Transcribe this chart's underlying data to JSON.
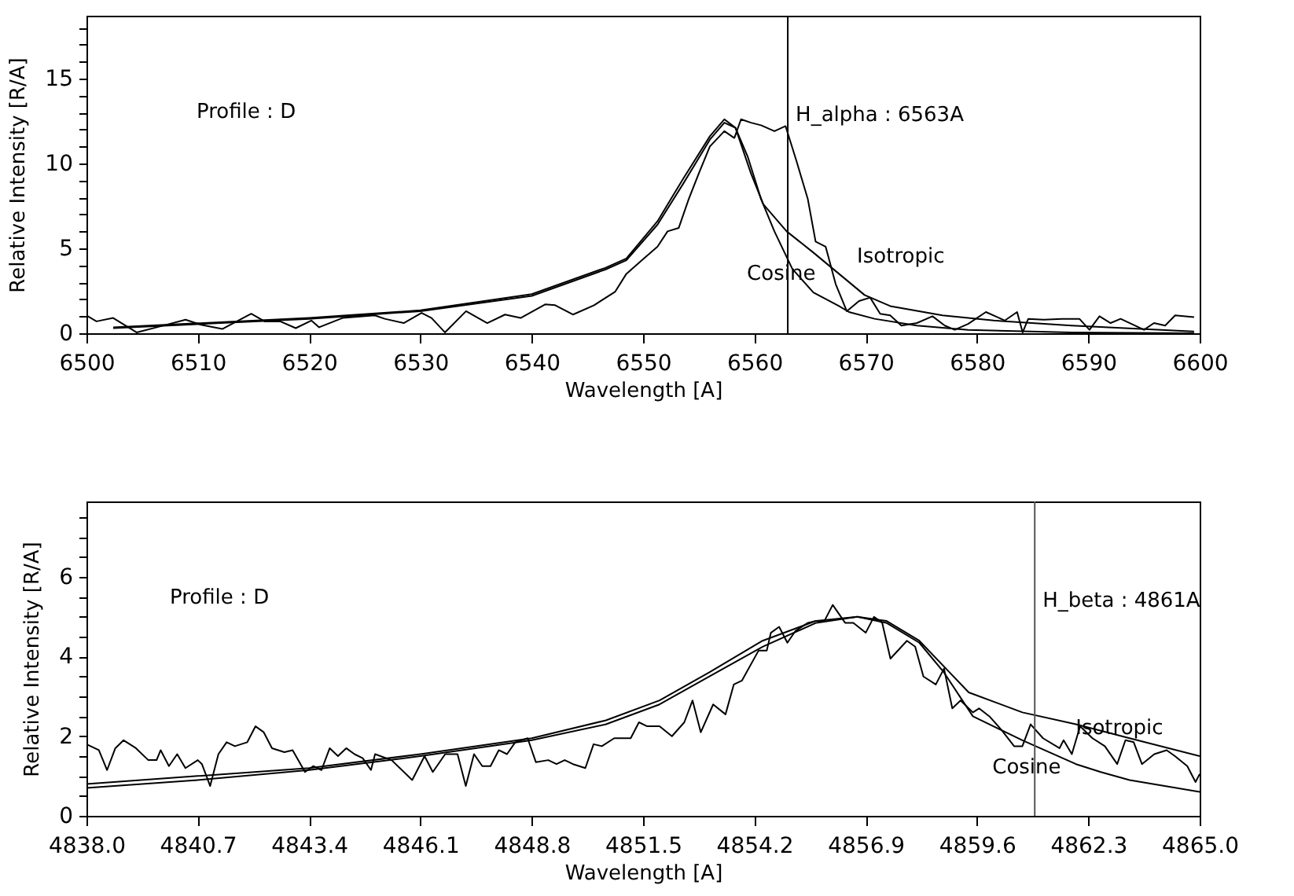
{
  "chart_data": [
    {
      "type": "line",
      "xlabel": "Wavelength    [A]",
      "ylabel": "Relative Intensity  [R/A]",
      "annotations": [
        "Profile : D"
      ],
      "xlim": [
        6500,
        6600
      ],
      "xticks": [
        6500,
        6510,
        6520,
        6530,
        6540,
        6550,
        6560,
        6570,
        6580,
        6590,
        6600
      ],
      "ylim": [
        0,
        18.7
      ],
      "yticks": [
        0,
        {
          "value": 1,
          "label": null
        },
        {
          "value": 2,
          "label": null
        },
        {
          "value": 3,
          "label": null
        },
        {
          "value": 4,
          "label": null
        },
        5,
        {
          "value": 6,
          "label": null
        },
        {
          "value": 7,
          "label": null
        },
        {
          "value": 8,
          "label": null
        },
        {
          "value": 9,
          "label": null
        },
        10,
        {
          "value": 11,
          "label": null
        },
        {
          "value": 12,
          "label": null
        },
        {
          "value": 13,
          "label": null
        },
        {
          "value": 14,
          "label": null
        },
        15,
        {
          "value": 16,
          "label": null
        },
        {
          "value": 17,
          "label": null
        },
        {
          "value": 18,
          "label": null
        }
      ],
      "ref_lines": [
        {
          "axis": "x",
          "value": 6563,
          "label": "H_alpha : 6563A",
          "color": "#000000"
        }
      ],
      "series": [
        {
          "color": "#000000",
          "x": [
            6500,
            6500.9,
            6502.4,
            6504.5,
            6506.6,
            6508.9,
            6510.3,
            6512.2,
            6514.8,
            6516,
            6517.4,
            6518.8,
            6520.2,
            6520.9,
            6523,
            6525.9,
            6526.8,
            6528.5,
            6530.1,
            6531,
            6532.2,
            6534.1,
            6536,
            6537.6,
            6539,
            6541.2,
            6542.1,
            6543.7,
            6545.6,
            6547.5,
            6548.5,
            6549.9,
            6551.3,
            6552.2,
            6553.2,
            6554.1,
            6555,
            6556,
            6557.3,
            6558.2,
            6558.8,
            6559.7,
            6560.6,
            6561.8,
            6562.8,
            6563.8,
            6564.8,
            6565.5,
            6566.4,
            6567.3,
            6568.3,
            6569.4,
            6570.4,
            6571.3,
            6572.2,
            6573.2,
            6574.6,
            6576,
            6577.1,
            6578,
            6579.2,
            6580.8,
            6582.5,
            6583.6,
            6584.1,
            6584.6,
            6586,
            6587.6,
            6589.2,
            6590.1,
            6591,
            6592,
            6592.9,
            6595,
            6595.9,
            6596.9,
            6597.8,
            6599.5
          ],
          "values": [
            1.05,
            0.7,
            0.9,
            0.05,
            0.4,
            0.8,
            0.5,
            0.25,
            1.15,
            0.7,
            0.7,
            0.3,
            0.75,
            0.35,
            0.9,
            1.05,
            0.85,
            0.6,
            1.2,
            0.9,
            0.05,
            1.3,
            0.6,
            1.1,
            0.9,
            1.7,
            1.65,
            1.1,
            1.65,
            2.45,
            3.5,
            4.3,
            5.1,
            6.0,
            6.2,
            7.9,
            9.4,
            11.0,
            11.9,
            11.5,
            12.6,
            12.4,
            12.25,
            11.9,
            12.2,
            10.1,
            7.9,
            5.4,
            5.1,
            2.9,
            1.3,
            1.9,
            2.1,
            1.15,
            1.05,
            0.45,
            0.6,
            1.0,
            0.45,
            0.2,
            0.55,
            1.25,
            0.75,
            1.25,
            0.05,
            0.85,
            0.8,
            0.85,
            0.85,
            0.2,
            1.0,
            0.6,
            0.85,
            0.2,
            0.6,
            0.45,
            1.05,
            0.95
          ]
        },
        {
          "name": "Isotropic",
          "color": "#000000",
          "x": [
            6502.4,
            6520,
            6530,
            6540,
            6546.6,
            6548.5,
            6551.3,
            6553.6,
            6556,
            6557.3,
            6558.3,
            6559.7,
            6560.8,
            6562.9,
            6565.3,
            6567.6,
            6569.9,
            6572.2,
            6576.9,
            6581.5,
            6588.5,
            6599.5
          ],
          "values": [
            0.35,
            0.9,
            1.35,
            2.3,
            3.85,
            4.4,
            6.6,
            9.1,
            11.6,
            12.6,
            12.1,
            9.4,
            7.6,
            6.0,
            4.75,
            3.5,
            2.25,
            1.6,
            1.05,
            0.75,
            0.45,
            0.1
          ]
        },
        {
          "name": "Cosine",
          "color": "#000000",
          "x": [
            6502.4,
            6520,
            6530,
            6540,
            6546.6,
            6548.5,
            6551.3,
            6553.6,
            6556,
            6557.3,
            6558.3,
            6559.4,
            6560.6,
            6561.8,
            6563.4,
            6565.3,
            6567.6,
            6568.5,
            6570.8,
            6574.6,
            6579.2,
            6588.5,
            6599.5
          ],
          "values": [
            0.3,
            0.85,
            1.3,
            2.2,
            3.75,
            4.3,
            6.4,
            8.8,
            11.4,
            12.4,
            12.1,
            10.4,
            7.9,
            6.0,
            3.8,
            2.4,
            1.6,
            1.25,
            0.85,
            0.45,
            0.2,
            0.05,
            0.0
          ]
        }
      ]
    },
    {
      "type": "line",
      "xlabel": "Wavelength    [A]",
      "ylabel": "Relative Intensity  [R/A]",
      "annotations": [
        "Profile : D"
      ],
      "xlim": [
        4838,
        4865
      ],
      "xticks": [
        {
          "value": 4838,
          "label": "4838.0"
        },
        4840.7,
        4843.4,
        4846.1,
        4848.8,
        4851.5,
        4854.2,
        4856.9,
        4859.6,
        4862.3,
        {
          "value": 4865,
          "label": "4865.0"
        }
      ],
      "ylim": [
        0,
        7.9
      ],
      "yticks": [
        0,
        {
          "value": 0.5,
          "label": null
        },
        {
          "value": 1,
          "label": null
        },
        {
          "value": 1.5,
          "label": null
        },
        2,
        {
          "value": 2.5,
          "label": null
        },
        {
          "value": 3,
          "label": null
        },
        {
          "value": 3.5,
          "label": null
        },
        4,
        {
          "value": 4.5,
          "label": null
        },
        {
          "value": 5,
          "label": null
        },
        {
          "value": 5.5,
          "label": null
        },
        6,
        {
          "value": 6.5,
          "label": null
        },
        {
          "value": 7,
          "label": null
        },
        {
          "value": 7.5,
          "label": null
        }
      ],
      "ref_lines": [
        {
          "axis": "x",
          "value": 4861,
          "label": "H_beta : 4861A",
          "color": "#555555"
        }
      ],
      "series": [
        {
          "color": "#000000",
          "x": [
            4838.0,
            4838.3,
            4838.5,
            4838.7,
            4838.9,
            4839.2,
            4839.5,
            4839.7,
            4839.8,
            4840.0,
            4840.2,
            4840.4,
            4840.7,
            4840.8,
            4841.0,
            4841.2,
            4841.4,
            4841.6,
            4841.9,
            4842.1,
            4842.3,
            4842.5,
            4842.8,
            4843.0,
            4843.3,
            4843.5,
            4843.7,
            4843.9,
            4844.1,
            4844.3,
            4844.5,
            4844.7,
            4844.9,
            4845.0,
            4845.4,
            4845.9,
            4846.2,
            4846.4,
            4846.7,
            4847.0,
            4847.2,
            4847.4,
            4847.6,
            4847.8,
            4848.0,
            4848.2,
            4848.4,
            4848.7,
            4848.9,
            4849.2,
            4849.4,
            4849.6,
            4849.8,
            4850.1,
            4850.3,
            4850.5,
            4850.8,
            4851.2,
            4851.4,
            4851.6,
            4851.9,
            4852.2,
            4852.5,
            4852.7,
            4852.9,
            4853.2,
            4853.5,
            4853.7,
            4853.9,
            4854.3,
            4854.5,
            4854.6,
            4854.8,
            4855.0,
            4855.2,
            4855.5,
            4855.7,
            4855.9,
            4856.1,
            4856.4,
            4856.6,
            4856.9,
            4857.1,
            4857.3,
            4857.5,
            4857.9,
            4858.1,
            4858.3,
            4858.6,
            4858.8,
            4859.0,
            4859.2,
            4859.5,
            4859.65,
            4859.9,
            4860.2,
            4860.5,
            4860.7,
            4860.9,
            4861.2,
            4861.6,
            4861.7,
            4861.9,
            4862.1,
            4862.4,
            4862.7,
            4863.0,
            4863.2,
            4863.4,
            4863.6,
            4863.9,
            4864.2,
            4864.4,
            4864.7,
            4864.9,
            4865.0
          ],
          "values": [
            1.8,
            1.65,
            1.15,
            1.7,
            1.9,
            1.7,
            1.4,
            1.4,
            1.65,
            1.25,
            1.55,
            1.2,
            1.4,
            1.3,
            0.75,
            1.55,
            1.85,
            1.75,
            1.85,
            2.25,
            2.1,
            1.7,
            1.6,
            1.65,
            1.1,
            1.25,
            1.15,
            1.7,
            1.5,
            1.7,
            1.55,
            1.45,
            1.15,
            1.55,
            1.4,
            0.9,
            1.5,
            1.1,
            1.55,
            1.55,
            0.75,
            1.55,
            1.25,
            1.25,
            1.65,
            1.55,
            1.85,
            1.95,
            1.35,
            1.4,
            1.3,
            1.4,
            1.3,
            1.2,
            1.8,
            1.75,
            1.95,
            1.95,
            2.35,
            2.25,
            2.25,
            2.0,
            2.35,
            2.9,
            2.1,
            2.8,
            2.55,
            3.3,
            3.4,
            4.15,
            4.15,
            4.6,
            4.75,
            4.35,
            4.65,
            4.85,
            4.9,
            4.9,
            5.3,
            4.85,
            4.85,
            4.6,
            5.0,
            4.85,
            3.95,
            4.4,
            4.25,
            3.5,
            3.3,
            3.7,
            2.7,
            2.9,
            2.6,
            2.7,
            2.5,
            2.15,
            1.75,
            1.75,
            2.3,
            1.95,
            1.7,
            1.9,
            1.55,
            2.25,
            1.95,
            1.75,
            1.3,
            1.9,
            1.85,
            1.3,
            1.55,
            1.65,
            1.5,
            1.25,
            0.85,
            1.05
          ]
        },
        {
          "name": "Isotropic",
          "color": "#000000",
          "x": [
            4838,
            4840.7,
            4843.4,
            4846.1,
            4848.8,
            4850.6,
            4851.9,
            4853.1,
            4854.4,
            4855.7,
            4856.7,
            4857.4,
            4858.2,
            4858.8,
            4859.4,
            4860.7,
            4862.0,
            4863.3,
            4865.0
          ],
          "values": [
            0.8,
            1.0,
            1.2,
            1.55,
            1.95,
            2.4,
            2.9,
            3.6,
            4.4,
            4.9,
            5.0,
            4.9,
            4.4,
            3.75,
            3.1,
            2.6,
            2.3,
            1.95,
            1.5
          ]
        },
        {
          "name": "Cosine",
          "color": "#000000",
          "x": [
            4838,
            4840.7,
            4843.4,
            4846.1,
            4848.8,
            4850.6,
            4851.9,
            4853.1,
            4854.4,
            4855.7,
            4856.7,
            4857.4,
            4858.2,
            4858.8,
            4859.5,
            4860.7,
            4862.0,
            4862.6,
            4863.3,
            4865.0
          ],
          "values": [
            0.7,
            0.9,
            1.15,
            1.5,
            1.9,
            2.3,
            2.8,
            3.5,
            4.25,
            4.85,
            5.0,
            4.85,
            4.35,
            3.6,
            2.5,
            1.9,
            1.3,
            1.1,
            0.9,
            0.6
          ]
        }
      ]
    }
  ]
}
